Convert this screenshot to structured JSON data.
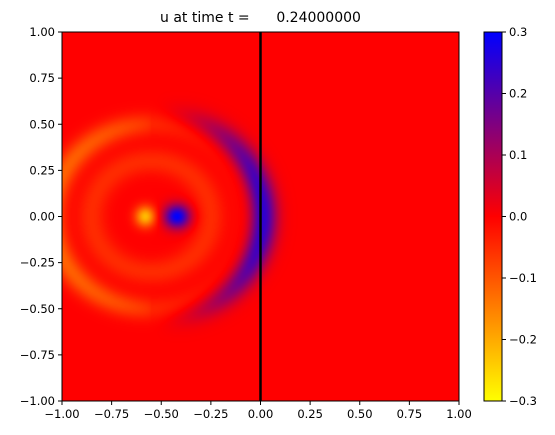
{
  "chart_data": {
    "type": "heatmap",
    "title": "u at time t =      0.24000000",
    "xlabel": "",
    "ylabel": "",
    "xlim": [
      -1.0,
      1.0
    ],
    "ylim": [
      -1.0,
      1.0
    ],
    "x_ticks": [
      -1.0,
      -0.75,
      -0.5,
      -0.25,
      0.0,
      0.25,
      0.5,
      0.75,
      1.0
    ],
    "x_tick_labels": [
      "−1.00",
      "−0.75",
      "−0.50",
      "−0.25",
      "0.00",
      "0.25",
      "0.50",
      "0.75",
      "1.00"
    ],
    "y_ticks": [
      1.0,
      0.75,
      0.5,
      0.25,
      0.0,
      -0.25,
      -0.5,
      -0.75,
      -1.0
    ],
    "y_tick_labels": [
      "1.00",
      "0.75",
      "0.50",
      "0.25",
      "0.00",
      "−0.25",
      "−0.50",
      "−0.75",
      "−1.00"
    ],
    "colorbar": {
      "range": [
        -0.3,
        0.3
      ],
      "ticks": [
        0.3,
        0.2,
        0.1,
        0.0,
        -0.1,
        -0.2,
        -0.3
      ],
      "tick_labels": [
        "0.3",
        "0.2",
        "0.1",
        "0.0",
        "−0.1",
        "−0.2",
        "−0.3"
      ],
      "colormap": [
        "#ffff00",
        "#ff0000",
        "#0000ff"
      ]
    },
    "vertical_line": {
      "x": 0.0,
      "color": "#000000"
    },
    "field_features": [
      {
        "kind": "outer_ring",
        "center": [
          -0.55,
          0.0
        ],
        "radius": 0.5,
        "value": -0.12
      },
      {
        "kind": "inner_ring",
        "center": [
          -0.55,
          0.0
        ],
        "radius": 0.3,
        "value": -0.05
      },
      {
        "kind": "negative_spot",
        "center": [
          -0.58,
          0.0
        ],
        "value": -0.22
      },
      {
        "kind": "positive_spot",
        "center": [
          -0.42,
          0.0
        ],
        "value": 0.3
      },
      {
        "kind": "positive_crescent",
        "center": [
          -0.55,
          0.0
        ],
        "radius": 0.56,
        "value": 0.26
      }
    ]
  }
}
